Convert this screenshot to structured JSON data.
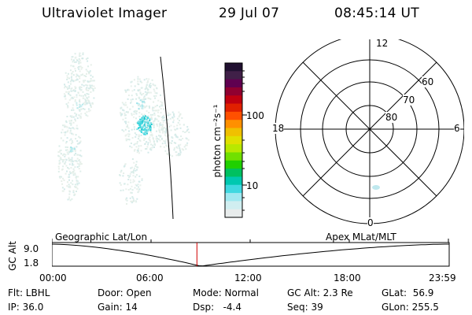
{
  "header": {
    "instrument": "Ultraviolet Imager",
    "date": "29 Jul 07",
    "time": "08:45:14 UT"
  },
  "colorbar": {
    "label": "photon cm⁻²s⁻¹",
    "ticks": [
      "100",
      "10"
    ],
    "colors": [
      "#201030",
      "#402048",
      "#600050",
      "#900030",
      "#c00010",
      "#e02000",
      "#ff5000",
      "#ff9000",
      "#f0c000",
      "#e0e000",
      "#b8e800",
      "#70e000",
      "#20d000",
      "#00c060",
      "#00c8b0",
      "#40d8e0",
      "#a0e8f0",
      "#d0eef0",
      "#e8ecec"
    ]
  },
  "polar_plot": {
    "mlt_labels": {
      "top": "12",
      "left": "18",
      "right": "6",
      "bottom": "0"
    },
    "lat_labels": [
      "60",
      "70",
      "80"
    ]
  },
  "timeline": {
    "ylabel": "GC Alt",
    "yticks": [
      "9.0",
      "1.8"
    ],
    "left_label": "Geographic Lat/Lon",
    "right_label": "Apex MLat/MLT",
    "xticks": [
      "00:00",
      "06:00",
      "12:00",
      "18:00",
      "23:59"
    ],
    "current_time_fraction": 0.365,
    "marker_color": "#d00000"
  },
  "info": {
    "flt": "Flt: LBHL",
    "ip": "IP: 36.0",
    "door": "Door: Open",
    "gain": "Gain: 14",
    "mode": "Mode: Normal",
    "dsp": "Dsp:   -4.4",
    "gc_alt": "GC Alt: 2.3 Re",
    "seq": "Seq: 39",
    "glat": "GLat:  56.9",
    "glon": "GLon: 255.5"
  }
}
